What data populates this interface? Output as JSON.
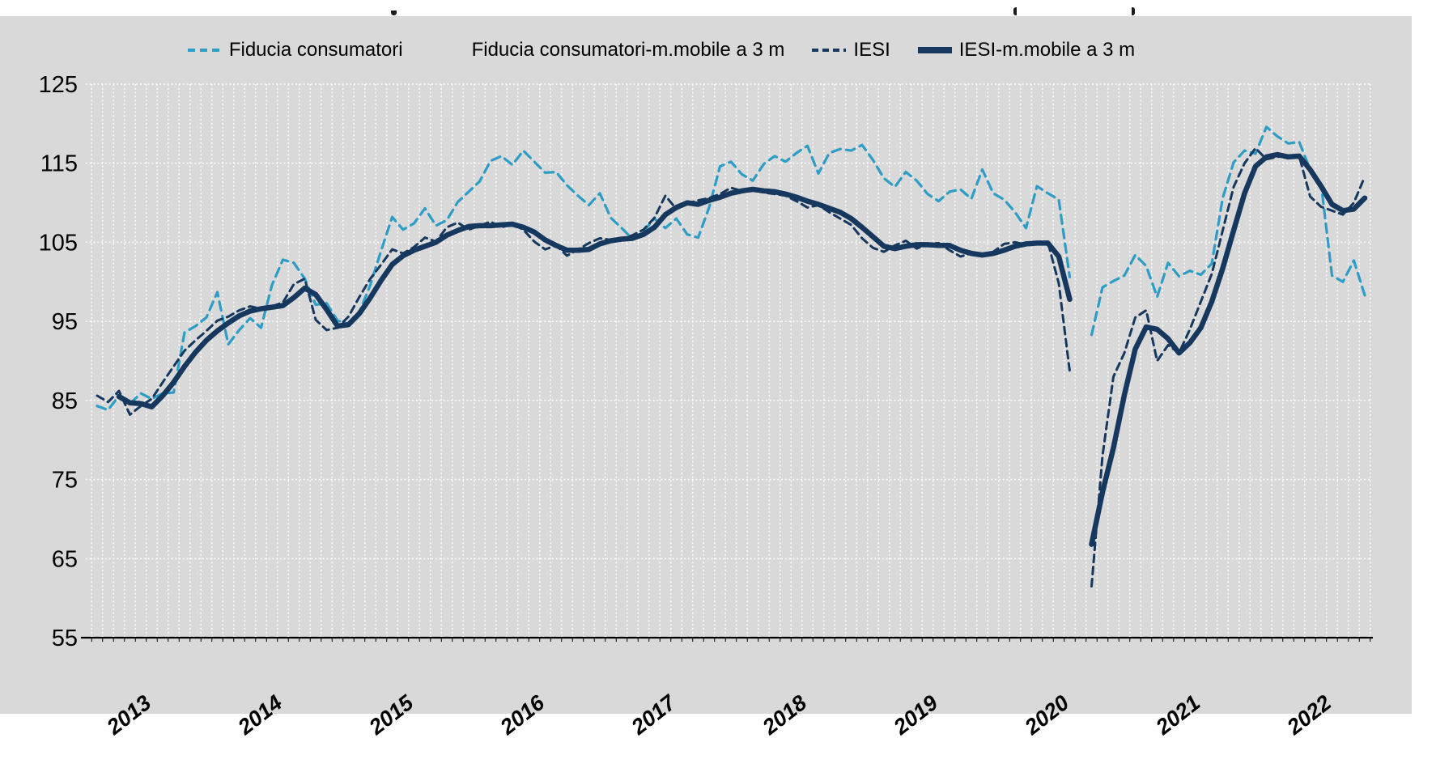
{
  "panel": {
    "background": "#d9d9d9",
    "page_background": "#ffffff"
  },
  "legend": {
    "items": [
      {
        "label": "Fiducia consumatori",
        "color": "#2d9dc6",
        "line_style": "dashed"
      },
      {
        "label": "Fiducia consumatori-m.mobile a 3 m",
        "color": "none",
        "line_style": "none"
      },
      {
        "label": "IESI",
        "color": "#16375e",
        "line_style": "dashed"
      },
      {
        "label": "IESI-m.mobile a 3 m",
        "color": "#16375e",
        "line_style": "thick-solid"
      }
    ]
  },
  "chart_data": {
    "type": "line",
    "x_frequency": "monthly",
    "x_start": "2012-10",
    "x_end": "2022-06",
    "n_points": 117,
    "gap_month": "2020-04",
    "x_tick_labels": [
      "2013",
      "2014",
      "2015",
      "2016",
      "2017",
      "2018",
      "2019",
      "2020",
      "2021",
      "2022"
    ],
    "y_tick_labels": [
      125,
      115,
      105,
      95,
      85,
      75,
      65,
      55
    ],
    "ylim": [
      55,
      125
    ],
    "grid": "white-dotted, monthly vertical + every 10 units horizontal",
    "legend_position": "top-center",
    "series": [
      {
        "name": "Fiducia consumatori",
        "color": "#2d9dc6",
        "line_style": "dashed",
        "width": 3.2,
        "values": [
          84.3,
          83.8,
          85.6,
          84.6,
          85.9,
          85.2,
          85.9,
          86.0,
          93.6,
          94.4,
          95.5,
          98.7,
          92.1,
          93.9,
          95.4,
          94.2,
          99.6,
          102.8,
          102.4,
          100.4,
          97.1,
          97.3,
          95.1,
          94.7,
          96.2,
          99.6,
          104.0,
          108.2,
          106.6,
          107.4,
          109.3,
          107.1,
          107.8,
          110.1,
          111.4,
          112.7,
          115.3,
          115.9,
          114.8,
          116.6,
          115.2,
          113.8,
          113.9,
          112.2,
          110.9,
          109.7,
          111.2,
          108.1,
          106.8,
          105.4,
          106.4,
          108.0,
          106.8,
          108.0,
          106.0,
          105.6,
          109.4,
          114.6,
          115.2,
          113.6,
          112.8,
          114.9,
          115.9,
          115.2,
          116.3,
          117.2,
          113.7,
          116.3,
          116.8,
          116.6,
          117.3,
          115.4,
          113.1,
          112.0,
          113.9,
          112.8,
          111.1,
          110.2,
          111.4,
          111.7,
          110.5,
          114.2,
          111.2,
          110.4,
          108.8,
          106.8,
          112.1,
          111.2,
          110.4,
          100.6,
          null,
          93.3,
          99.3,
          100.1,
          100.8,
          103.4,
          102.0,
          98.1,
          102.4,
          100.7,
          101.4,
          100.9,
          102.3,
          110.6,
          115.1,
          116.6,
          116.2,
          119.6,
          118.4,
          117.5,
          117.7,
          114.2,
          112.4,
          100.8,
          100.0,
          102.7,
          98.3
        ]
      },
      {
        "name": "Fiducia consumatori-m.mobile a 3 m",
        "color": "none",
        "line_style": "none",
        "width": 0,
        "values": null
      },
      {
        "name": "IESI",
        "color": "#16375e",
        "line_style": "dashed",
        "width": 3.0,
        "values": [
          85.6,
          84.8,
          86.2,
          83.2,
          84.3,
          85.2,
          87.3,
          89.3,
          91.3,
          92.6,
          93.8,
          95.1,
          95.6,
          96.4,
          96.9,
          96.6,
          96.9,
          97.4,
          99.7,
          100.4,
          95.2,
          93.9,
          94.2,
          95.6,
          98.1,
          100.4,
          102.2,
          104.1,
          103.6,
          104.4,
          105.6,
          105.1,
          106.9,
          107.5,
          106.6,
          107.1,
          107.6,
          106.9,
          107.3,
          106.6,
          105.1,
          104.1,
          104.6,
          103.3,
          104.1,
          104.9,
          105.5,
          105.3,
          105.4,
          105.9,
          106.6,
          108.1,
          110.9,
          109.2,
          109.9,
          110.3,
          110.6,
          111.1,
          111.9,
          111.5,
          111.7,
          111.3,
          111.1,
          110.9,
          110.2,
          109.4,
          109.7,
          108.8,
          108.0,
          107.2,
          105.5,
          104.3,
          103.8,
          104.6,
          105.2,
          104.2,
          104.8,
          104.9,
          104.0,
          103.2,
          103.6,
          103.4,
          103.8,
          104.8,
          105.0,
          104.7,
          104.9,
          105.0,
          99.8,
          88.7,
          null,
          61.5,
          78.0,
          88.0,
          91.0,
          95.5,
          96.4,
          90.0,
          92.0,
          91.0,
          94.0,
          97.5,
          101.0,
          106.5,
          112.0,
          115.0,
          116.9,
          115.5,
          115.8,
          116.0,
          115.9,
          110.8,
          109.5,
          109.0,
          108.5,
          110.0,
          113.3
        ]
      },
      {
        "name": "IESI-m.mobile a 3 m",
        "color": "#16375e",
        "line_style": "solid",
        "width": 6.5,
        "values": [
          null,
          null,
          85.5,
          84.7,
          84.6,
          84.2,
          85.6,
          87.3,
          89.3,
          91.1,
          92.6,
          93.8,
          94.8,
          95.7,
          96.3,
          96.6,
          96.8,
          97.0,
          98.0,
          99.2,
          98.4,
          96.5,
          94.4,
          94.6,
          96.0,
          98.0,
          100.2,
          102.2,
          103.3,
          104.0,
          104.5,
          105.0,
          105.9,
          106.5,
          107.0,
          107.1,
          107.1,
          107.2,
          107.3,
          106.9,
          106.3,
          105.3,
          104.6,
          104.0,
          104.0,
          104.1,
          104.8,
          105.2,
          105.4,
          105.5,
          106.0,
          106.9,
          108.5,
          109.4,
          110.0,
          109.8,
          110.3,
          110.7,
          111.2,
          111.5,
          111.7,
          111.5,
          111.4,
          111.1,
          110.7,
          110.2,
          109.8,
          109.3,
          108.8,
          108.0,
          106.9,
          105.7,
          104.5,
          104.2,
          104.5,
          104.7,
          104.7,
          104.6,
          104.6,
          104.0,
          103.6,
          103.4,
          103.6,
          104.0,
          104.5,
          104.8,
          104.9,
          104.9,
          103.2,
          97.8,
          null,
          66.8,
          73.4,
          79.0,
          85.7,
          91.5,
          94.3,
          94.0,
          92.8,
          91.0,
          92.3,
          94.2,
          97.5,
          101.7,
          106.5,
          111.2,
          114.6,
          115.8,
          116.1,
          115.8,
          115.9,
          114.2,
          112.1,
          109.8,
          109.0,
          109.2,
          110.6
        ]
      }
    ]
  }
}
